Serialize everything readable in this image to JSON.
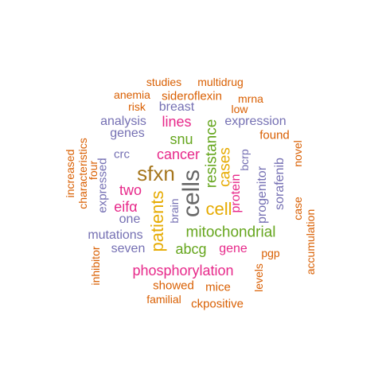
{
  "colors": {
    "orange": "#d95f02",
    "purple": "#7570b3",
    "magenta": "#e7298a",
    "green": "#66a61e",
    "gold": "#e6ab02",
    "brown": "#a6761d",
    "gray": "#666666"
  },
  "words": [
    {
      "text": "cells",
      "color": "gray",
      "vertical": true
    },
    {
      "text": "sfxn",
      "color": "brown",
      "vertical": false
    },
    {
      "text": "patients",
      "color": "gold",
      "vertical": true
    },
    {
      "text": "cell",
      "color": "gold",
      "vertical": false
    },
    {
      "text": "mitochondrial",
      "color": "green",
      "vertical": false
    },
    {
      "text": "resistance",
      "color": "green",
      "vertical": true
    },
    {
      "text": "cases",
      "color": "gold",
      "vertical": true
    },
    {
      "text": "cancer",
      "color": "magenta",
      "vertical": false
    },
    {
      "text": "phosphorylation",
      "color": "magenta",
      "vertical": false
    },
    {
      "text": "abcg",
      "color": "green",
      "vertical": false
    },
    {
      "text": "lines",
      "color": "magenta",
      "vertical": false
    },
    {
      "text": "snu",
      "color": "green",
      "vertical": false
    },
    {
      "text": "two",
      "color": "magenta",
      "vertical": false
    },
    {
      "text": "eifα",
      "color": "magenta",
      "vertical": false
    },
    {
      "text": "gene",
      "color": "magenta",
      "vertical": false
    },
    {
      "text": "protein",
      "color": "magenta",
      "vertical": true
    },
    {
      "text": "expression",
      "color": "purple",
      "vertical": false
    },
    {
      "text": "breast",
      "color": "purple",
      "vertical": false
    },
    {
      "text": "progenitor",
      "color": "purple",
      "vertical": true
    },
    {
      "text": "sorafenib",
      "color": "purple",
      "vertical": true
    },
    {
      "text": "genes",
      "color": "purple",
      "vertical": false
    },
    {
      "text": "analysis",
      "color": "purple",
      "vertical": false
    },
    {
      "text": "one",
      "color": "purple",
      "vertical": false
    },
    {
      "text": "mutations",
      "color": "purple",
      "vertical": false
    },
    {
      "text": "seven",
      "color": "purple",
      "vertical": false
    },
    {
      "text": "crc",
      "color": "purple",
      "vertical": false
    },
    {
      "text": "expressed",
      "color": "purple",
      "vertical": true
    },
    {
      "text": "brain",
      "color": "purple",
      "vertical": true
    },
    {
      "text": "bcrp",
      "color": "purple",
      "vertical": true
    },
    {
      "text": "found",
      "color": "orange",
      "vertical": false
    },
    {
      "text": "sideroflexin",
      "color": "orange",
      "vertical": false
    },
    {
      "text": "studies",
      "color": "orange",
      "vertical": false
    },
    {
      "text": "multidrug",
      "color": "orange",
      "vertical": false
    },
    {
      "text": "anemia",
      "color": "orange",
      "vertical": false
    },
    {
      "text": "risk",
      "color": "orange",
      "vertical": false
    },
    {
      "text": "mrna",
      "color": "orange",
      "vertical": false
    },
    {
      "text": "low",
      "color": "orange",
      "vertical": false
    },
    {
      "text": "increased",
      "color": "orange",
      "vertical": true
    },
    {
      "text": "characteristics",
      "color": "orange",
      "vertical": true
    },
    {
      "text": "four",
      "color": "orange",
      "vertical": true
    },
    {
      "text": "inhibitor",
      "color": "orange",
      "vertical": true
    },
    {
      "text": "novel",
      "color": "orange",
      "vertical": true
    },
    {
      "text": "case",
      "color": "orange",
      "vertical": true
    },
    {
      "text": "accumulation",
      "color": "orange",
      "vertical": true
    },
    {
      "text": "pgp",
      "color": "orange",
      "vertical": false
    },
    {
      "text": "levels",
      "color": "orange",
      "vertical": true
    },
    {
      "text": "showed",
      "color": "orange",
      "vertical": false
    },
    {
      "text": "mice",
      "color": "orange",
      "vertical": false
    },
    {
      "text": "familial",
      "color": "orange",
      "vertical": false
    },
    {
      "text": "ckpositive",
      "color": "orange",
      "vertical": false
    }
  ]
}
